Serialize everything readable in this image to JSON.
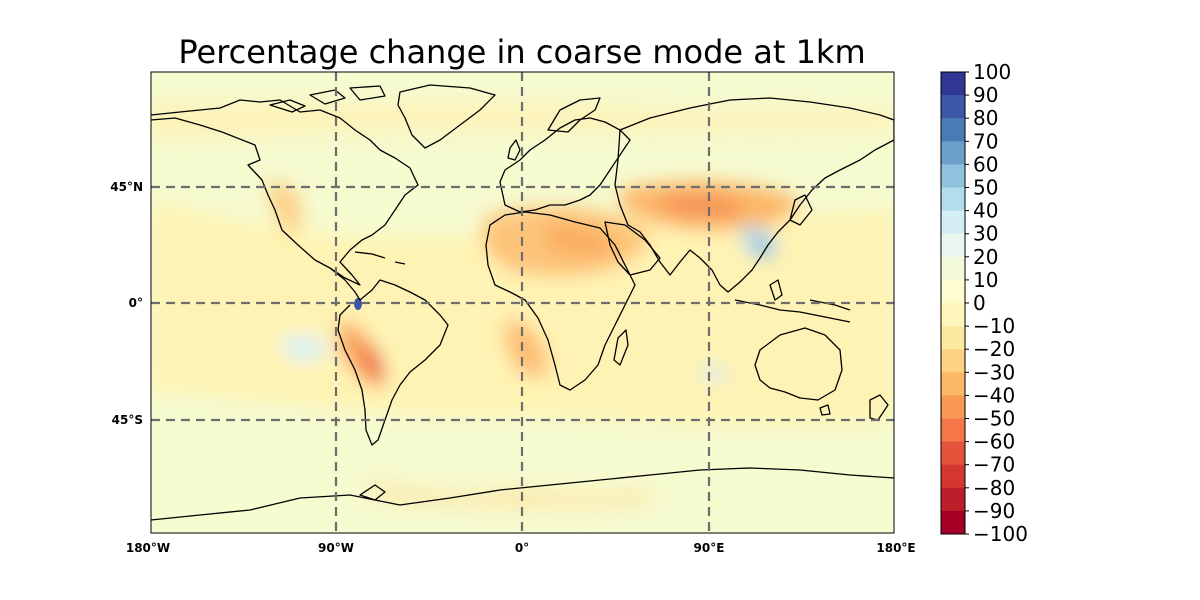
{
  "title": "Percentage change in coarse mode at 1km",
  "map": {
    "projection": "PlateCarree",
    "lat_ticks": [
      {
        "value": 45,
        "label": "45°N"
      },
      {
        "value": 0,
        "label": "0°"
      },
      {
        "value": -45,
        "label": "45°S"
      }
    ],
    "lon_ticks": [
      {
        "value": -180,
        "label": "180°W"
      },
      {
        "value": -90,
        "label": "90°W"
      },
      {
        "value": 0,
        "label": "0°"
      },
      {
        "value": 90,
        "label": "90°E"
      },
      {
        "value": 180,
        "label": "180°E"
      }
    ],
    "gridlines": "dashed grey at 90°W, 0°, 90°E and 45°N, 0°, 45°S",
    "lon_range": [
      -180,
      180
    ],
    "lat_range": [
      -90,
      83
    ]
  },
  "colorbar": {
    "colormap": "RdYlBu",
    "min": -100,
    "max": 100,
    "step": 10,
    "tick_labels": [
      "100",
      "90",
      "80",
      "70",
      "60",
      "50",
      "40",
      "30",
      "20",
      "10",
      "0",
      "−10",
      "−20",
      "−30",
      "−40",
      "−50",
      "−60",
      "−70",
      "−80",
      "−90",
      "−100"
    ],
    "colors": [
      "#313695",
      "#3b57a6",
      "#4a7bb7",
      "#6d9fcb",
      "#8fc3dd",
      "#b2ddeb",
      "#d5eef5",
      "#eaf7f0",
      "#f3fadb",
      "#fdfdd0",
      "#fff6bc",
      "#fee9a0",
      "#fed283",
      "#fdb866",
      "#f99855",
      "#f57648",
      "#e4543a",
      "#d3372f",
      "#bb1f2a",
      "#a50026"
    ]
  }
}
